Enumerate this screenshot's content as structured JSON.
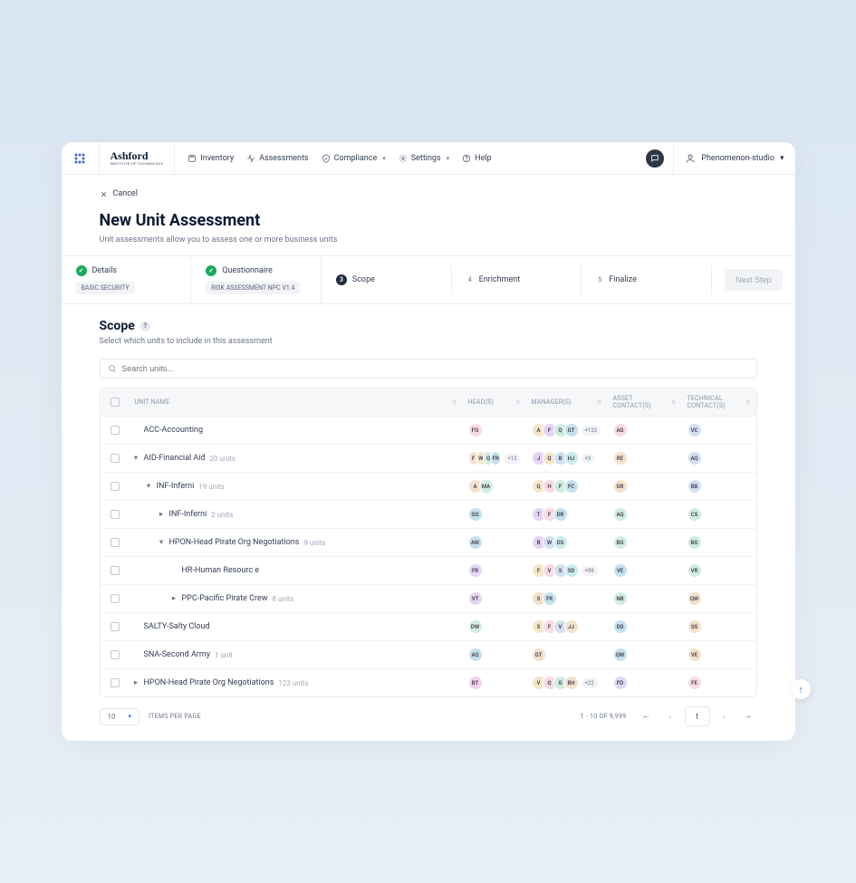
{
  "brand": {
    "name": "Ashford",
    "sub": "INSTITUTE OF TECHNOLOGY"
  },
  "menu": {
    "inventory": "Inventory",
    "assessments": "Assessments",
    "compliance": "Compliance",
    "settings": "Settings",
    "help": "Help"
  },
  "user": {
    "name": "Phenomenon-studio"
  },
  "cancel": "Cancel",
  "page": {
    "title": "New Unit Assessment",
    "subtitle": "Unit assessments allow you to assess one or more business units"
  },
  "steps": {
    "s1": {
      "label": "Details",
      "tag": "BASIC SECURITY"
    },
    "s2": {
      "label": "Questionnaire",
      "tag": "RISK ASSESSMENT NPC V1.4"
    },
    "s3": {
      "num": "3",
      "label": "Scope"
    },
    "s4": {
      "num": "4",
      "label": "Enrichment"
    },
    "s5": {
      "num": "5",
      "label": "Finalize"
    },
    "next": "Next Step"
  },
  "scope": {
    "title": "Scope",
    "subtitle": "Select which units to include in this assessment",
    "search_ph": "Search units..."
  },
  "columns": {
    "unit": "UNIT NAME",
    "heads": "HEAD(S)",
    "managers": "MANAGER(S)",
    "asset": "ASSET CONTACT(S)",
    "tech": "TECHNICAL CONTACT(S)"
  },
  "rows": [
    {
      "indent": 0,
      "toggle": "",
      "name": "ACC-Accounting",
      "count": "",
      "heads": [
        {
          "t": "FG",
          "c": "#f7dce4"
        }
      ],
      "managers": [
        {
          "t": "A",
          "c": "#f2e7c9"
        },
        {
          "t": "F",
          "c": "#e4d5f2"
        },
        {
          "t": "Q",
          "c": "#d1ece0"
        },
        {
          "t": "GT",
          "c": "#c4e2ec"
        }
      ],
      "mmore": "+123",
      "asset": [
        {
          "t": "AG",
          "c": "#f7dce4"
        }
      ],
      "tech": [
        {
          "t": "VC",
          "c": "#d3e0f2"
        }
      ]
    },
    {
      "indent": 0,
      "toggle": "▾",
      "name": "AID-Financial Aid",
      "count": "20 units",
      "heads": [
        {
          "t": "F",
          "c": "#f2e2cc"
        },
        {
          "t": "W",
          "c": "#f2e7c9"
        },
        {
          "t": "Q",
          "c": "#d1ece0"
        },
        {
          "t": "FR",
          "c": "#c4e2ec"
        }
      ],
      "hmore": "+12",
      "managers": [
        {
          "t": "J",
          "c": "#e4d5f2"
        },
        {
          "t": "Q",
          "c": "#f2e7c9"
        },
        {
          "t": "B",
          "c": "#d3e0f2"
        },
        {
          "t": "HJ",
          "c": "#c9ece9"
        }
      ],
      "mmore": "+3",
      "asset": [
        {
          "t": "RE",
          "c": "#f2e2cc"
        }
      ],
      "tech": [
        {
          "t": "AQ",
          "c": "#d3e0f2"
        }
      ]
    },
    {
      "indent": 1,
      "toggle": "▾",
      "name": "INF-Inferni",
      "count": "19 units",
      "heads": [
        {
          "t": "A",
          "c": "#f2e2cc"
        },
        {
          "t": "MA",
          "c": "#d1ece0"
        }
      ],
      "managers": [
        {
          "t": "Q",
          "c": "#f2e7c9"
        },
        {
          "t": "H",
          "c": "#f7dce4"
        },
        {
          "t": "F",
          "c": "#d1ece0"
        },
        {
          "t": "FC",
          "c": "#c4e2ec"
        }
      ],
      "asset": [
        {
          "t": "GR",
          "c": "#f2e2cc"
        }
      ],
      "tech": [
        {
          "t": "BB",
          "c": "#d3e0f2"
        }
      ]
    },
    {
      "indent": 2,
      "toggle": "▸",
      "name": "INF-Inferni",
      "count": "2 units",
      "heads": [
        {
          "t": "GG",
          "c": "#c4e2ec"
        }
      ],
      "managers": [
        {
          "t": "T",
          "c": "#e4d5f2"
        },
        {
          "t": "F",
          "c": "#f7dce4"
        },
        {
          "t": "DR",
          "c": "#c4e2ec"
        }
      ],
      "asset": [
        {
          "t": "AQ",
          "c": "#d1ece0"
        }
      ],
      "tech": [
        {
          "t": "CS",
          "c": "#d1ece0"
        }
      ]
    },
    {
      "indent": 2,
      "toggle": "▾",
      "name": "HPON-Head Pirate Org Negotiations",
      "count": "9 units",
      "heads": [
        {
          "t": "AW",
          "c": "#c4e2ec"
        }
      ],
      "managers": [
        {
          "t": "B",
          "c": "#e4d5f2"
        },
        {
          "t": "W",
          "c": "#d3e0f2"
        },
        {
          "t": "DS",
          "c": "#c9ece9"
        }
      ],
      "asset": [
        {
          "t": "BG",
          "c": "#d1ece0"
        }
      ],
      "tech": [
        {
          "t": "BG",
          "c": "#d1ece0"
        }
      ]
    },
    {
      "indent": 3,
      "toggle": "",
      "name": "HR-Human Resourc e",
      "count": "",
      "heads": [
        {
          "t": "FR",
          "c": "#e4d5f2"
        }
      ],
      "managers": [
        {
          "t": "F",
          "c": "#f2e7c9"
        },
        {
          "t": "V",
          "c": "#f7dce4"
        },
        {
          "t": "S",
          "c": "#d3e0f2"
        },
        {
          "t": "SD",
          "c": "#c9ece9"
        }
      ],
      "mmore": "+99",
      "asset": [
        {
          "t": "VE",
          "c": "#c4e2ec"
        }
      ],
      "tech": [
        {
          "t": "VR",
          "c": "#d1ece0"
        }
      ]
    },
    {
      "indent": 3,
      "toggle": "▸",
      "name": "PPC-Pacific Pirate Crew",
      "count": "8 units",
      "heads": [
        {
          "t": "VT",
          "c": "#e4d5f2"
        }
      ],
      "managers": [
        {
          "t": "S",
          "c": "#f2e2cc"
        },
        {
          "t": "FR",
          "c": "#c4e2ec"
        }
      ],
      "asset": [
        {
          "t": "NB",
          "c": "#d1ece0"
        }
      ],
      "tech": [
        {
          "t": "QW",
          "c": "#f2e2cc"
        }
      ]
    },
    {
      "indent": 0,
      "toggle": "",
      "name": "SALTY-Salty Cloud",
      "count": "",
      "heads": [
        {
          "t": "DW",
          "c": "#d1ece0"
        }
      ],
      "managers": [
        {
          "t": "S",
          "c": "#f2e7c9"
        },
        {
          "t": "F",
          "c": "#f7dce4"
        },
        {
          "t": "V",
          "c": "#d3e0f2"
        },
        {
          "t": "JJ",
          "c": "#f2e2cc"
        }
      ],
      "asset": [
        {
          "t": "DD",
          "c": "#c4e2ec"
        }
      ],
      "tech": [
        {
          "t": "SS",
          "c": "#f2e2cc"
        }
      ]
    },
    {
      "indent": 0,
      "toggle": "",
      "name": "SNA-Second Army",
      "count": "1 unit",
      "heads": [
        {
          "t": "AQ",
          "c": "#c4e2ec"
        }
      ],
      "managers": [
        {
          "t": "GT",
          "c": "#f2e2cc"
        }
      ],
      "asset": [
        {
          "t": "QW",
          "c": "#c4e2ec"
        }
      ],
      "tech": [
        {
          "t": "VE",
          "c": "#f2e2cc"
        }
      ]
    },
    {
      "indent": 0,
      "toggle": "▸",
      "name": "HPON-Head Pirate Org Negotiations",
      "count": "123 units",
      "heads": [
        {
          "t": "BT",
          "c": "#f0d3ec"
        }
      ],
      "managers": [
        {
          "t": "V",
          "c": "#f2e7c9"
        },
        {
          "t": "Q",
          "c": "#f7dce4"
        },
        {
          "t": "G",
          "c": "#d1ece0"
        },
        {
          "t": "BH",
          "c": "#f2e2cc"
        }
      ],
      "mmore": "+22",
      "asset": [
        {
          "t": "FD",
          "c": "#dcd8f2"
        }
      ],
      "tech": [
        {
          "t": "FE",
          "c": "#f7dce4"
        }
      ]
    }
  ],
  "footer": {
    "perpage_value": "10",
    "perpage_label": "ITEMS PER PAGE",
    "range": "1 - 10 OF 9,999",
    "page": "1"
  }
}
